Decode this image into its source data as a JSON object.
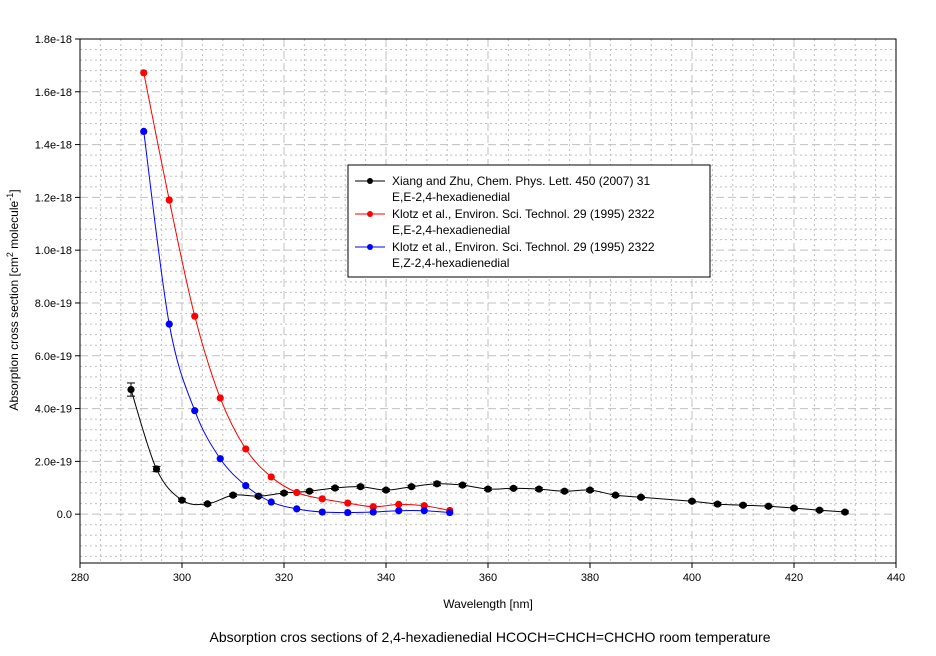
{
  "chart_data": {
    "type": "line",
    "title": "Absorption cros sections of 2,4-hexadienedial HCOCH=CHCH=CHCHO room temperature",
    "xlabel": "Wavelength [nm]",
    "ylabel_parts": [
      "Absorption cross section [cm",
      "2",
      " molecule",
      "-1",
      "]"
    ],
    "xlim": [
      280,
      440
    ],
    "ylim": [
      -1.85e-19,
      1.8e-18
    ],
    "x_ticks": [
      280,
      300,
      320,
      340,
      360,
      380,
      400,
      420,
      440
    ],
    "y_ticks": [
      0,
      2e-19,
      4e-19,
      6e-19,
      8e-19,
      1e-18,
      1.2e-18,
      1.4e-18,
      1.6e-18,
      1.8e-18
    ],
    "y_tick_labels": [
      "0.0",
      "2.0e-19",
      "4.0e-19",
      "6.0e-19",
      "8.0e-19",
      "1.0e-18",
      "1.2e-18",
      "1.4e-18",
      "1.6e-18",
      "1.8e-18"
    ],
    "grid": true,
    "legend_position": "center-right",
    "series": [
      {
        "name": "Xiang and Zhu, Chem. Phys. Lett. 450 (2007) 31",
        "name2": "E,E-2,4-hexadienedial",
        "color": "#000000",
        "x": [
          290,
          295,
          300,
          305,
          310,
          315,
          320,
          325,
          330,
          335,
          340,
          345,
          350,
          355,
          360,
          365,
          370,
          375,
          380,
          385,
          390,
          400,
          405,
          410,
          415,
          420,
          425,
          430
        ],
        "y": [
          4.72e-19,
          1.71e-19,
          5.3e-20,
          3.9e-20,
          7.2e-20,
          6.8e-20,
          8e-20,
          8.7e-20,
          9.9e-20,
          1.04e-19,
          9.1e-20,
          1.04e-19,
          1.15e-19,
          1.1e-19,
          9.5e-20,
          9.8e-20,
          9.5e-20,
          8.7e-20,
          9.1e-20,
          7.2e-20,
          6.4e-20,
          4.9e-20,
          3.8e-20,
          3.4e-20,
          3e-20,
          2.3e-20,
          1.5e-20,
          8e-21
        ],
        "err": [
          2.5e-20,
          1e-20,
          5e-21,
          5e-21,
          5e-21,
          5e-21,
          5e-21,
          5e-21,
          5e-21,
          6e-21,
          5e-21,
          5e-21,
          7e-21,
          6e-21,
          5e-21,
          5e-21,
          5e-21,
          5e-21,
          5e-21,
          5e-21,
          4e-21,
          4e-21,
          6e-21,
          4e-21,
          4e-21,
          4e-21,
          4e-21,
          4e-21
        ]
      },
      {
        "name": "Klotz et al., Environ. Sci. Technol. 29 (1995) 2322",
        "name2": "E,E-2,4-hexadienedial",
        "color": "#ff0000",
        "x": [
          292.5,
          297.5,
          302.5,
          307.5,
          312.5,
          317.5,
          322.5,
          327.5,
          332.5,
          337.5,
          342.5,
          347.5,
          352.5
        ],
        "y": [
          1.672e-18,
          1.19e-18,
          7.5e-19,
          4.4e-19,
          2.47e-19,
          1.41e-19,
          8.2e-20,
          5.8e-20,
          4.2e-20,
          2.8e-20,
          3.7e-20,
          3.2e-20,
          1.4e-20
        ]
      },
      {
        "name": "Klotz et al., Environ. Sci. Technol. 29 (1995) 2322",
        "name2": "E,Z-2,4-hexadienedial",
        "color": "#0000ff",
        "x": [
          292.5,
          297.5,
          302.5,
          307.5,
          312.5,
          317.5,
          322.5,
          327.5,
          332.5,
          337.5,
          342.5,
          347.5,
          352.5
        ],
        "y": [
          1.45e-18,
          7.2e-19,
          3.92e-19,
          2.1e-19,
          1.08e-19,
          4.6e-20,
          2e-20,
          8e-21,
          6e-21,
          8e-21,
          1.3e-20,
          1.3e-20,
          6e-21
        ]
      }
    ]
  }
}
